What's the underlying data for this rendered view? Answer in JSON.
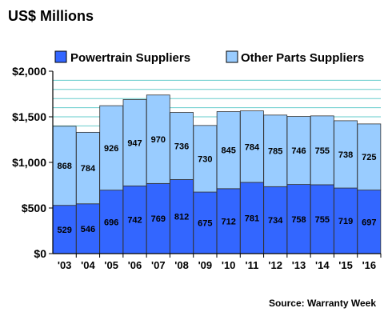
{
  "chart_data": {
    "type": "bar",
    "stacked": true,
    "title": "US$ Millions",
    "categories": [
      "'03",
      "'04",
      "'05",
      "'06",
      "'07",
      "'08",
      "'09",
      "'10",
      "'11",
      "'12",
      "'13",
      "'14",
      "'15",
      "'16"
    ],
    "series": [
      {
        "name": "Powertrain Suppliers",
        "color": "#3366ff",
        "values": [
          529,
          546,
          696,
          742,
          769,
          812,
          675,
          712,
          781,
          734,
          758,
          755,
          719,
          697
        ]
      },
      {
        "name": "Other Parts Suppliers",
        "color": "#99ccff",
        "values": [
          868,
          784,
          926,
          947,
          970,
          736,
          730,
          845,
          784,
          785,
          746,
          755,
          738,
          725
        ]
      }
    ],
    "ylim": [
      0,
      2000
    ],
    "yticks": [
      0,
      500,
      1000,
      1500,
      2000
    ],
    "ytick_labels": [
      "$0",
      "$500",
      "$1,000",
      "$1,500",
      "$2,000"
    ],
    "grid": true,
    "grid_color": "#66cccc",
    "plot_background": "#ffffff",
    "legend_position": "top",
    "source": "Source: Warranty Week"
  }
}
